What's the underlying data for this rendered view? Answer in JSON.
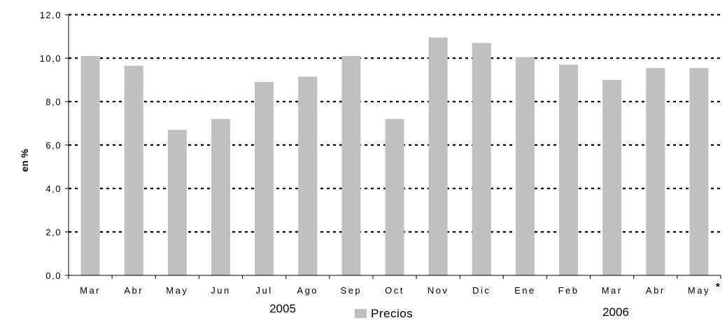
{
  "chart_data": {
    "type": "bar",
    "ylabel": "en %",
    "ylim": [
      0,
      12
    ],
    "y_ticks": [
      "0,0",
      "2,0",
      "4,0",
      "6,0",
      "8,0",
      "10,0",
      "12,0"
    ],
    "categories": [
      "Mar",
      "Abr",
      "May",
      "Jun",
      "Jul",
      "Ago",
      "Sep",
      "Oct",
      "Nov",
      "Dic",
      "Ene",
      "Feb",
      "Mar",
      "Abr",
      "May"
    ],
    "category_note": "*",
    "year_groups": [
      "2005",
      "2006"
    ],
    "series": [
      {
        "name": "Precios",
        "color": "#c0c0c0",
        "values": [
          10.1,
          9.65,
          6.7,
          7.2,
          8.9,
          9.15,
          10.1,
          7.2,
          10.95,
          10.7,
          10.05,
          9.7,
          9.0,
          9.55,
          9.55
        ]
      }
    ],
    "grid": true,
    "legend_position": "bottom"
  }
}
